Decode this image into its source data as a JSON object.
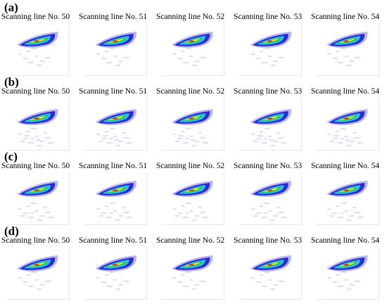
{
  "rows": [
    {
      "label": "(a)",
      "images": [
        {
          "title": "Scanning line No. 50"
        },
        {
          "title": "Scanning line No. 51"
        },
        {
          "title": "Scanning line No. 52"
        },
        {
          "title": "Scanning line No. 53"
        },
        {
          "title": "Scanning line No. 54"
        }
      ]
    },
    {
      "label": "(b)",
      "images": [
        {
          "title": "Scanning line No. 50"
        },
        {
          "title": "Scanning line No. 51"
        },
        {
          "title": "Scanning line No. 52"
        },
        {
          "title": "Scanning line No. 53"
        },
        {
          "title": "Scanning line No. 54"
        }
      ]
    },
    {
      "label": "(c)",
      "images": [
        {
          "title": "Scanning line No. 50"
        },
        {
          "title": "Scanning line No. 51"
        },
        {
          "title": "Scanning line No. 52"
        },
        {
          "title": "Scanning line No. 53"
        },
        {
          "title": "Scanning line No. 54"
        }
      ]
    },
    {
      "label": "(d)",
      "images": [
        {
          "title": "Scanning line No. 50"
        },
        {
          "title": "Scanning line No. 51"
        },
        {
          "title": "Scanning line No. 52"
        },
        {
          "title": "Scanning line No. 53"
        },
        {
          "title": "Scanning line No. 54"
        }
      ]
    }
  ],
  "colors": {
    "background": "#ffffff",
    "scatter": "#c8c8ee",
    "outer": "#2a2ad6",
    "mid_cyan": "#20c8e6",
    "mid_green": "#2ec45a",
    "core_yellow": "#e8e42a",
    "core_red": "#e0321e"
  }
}
